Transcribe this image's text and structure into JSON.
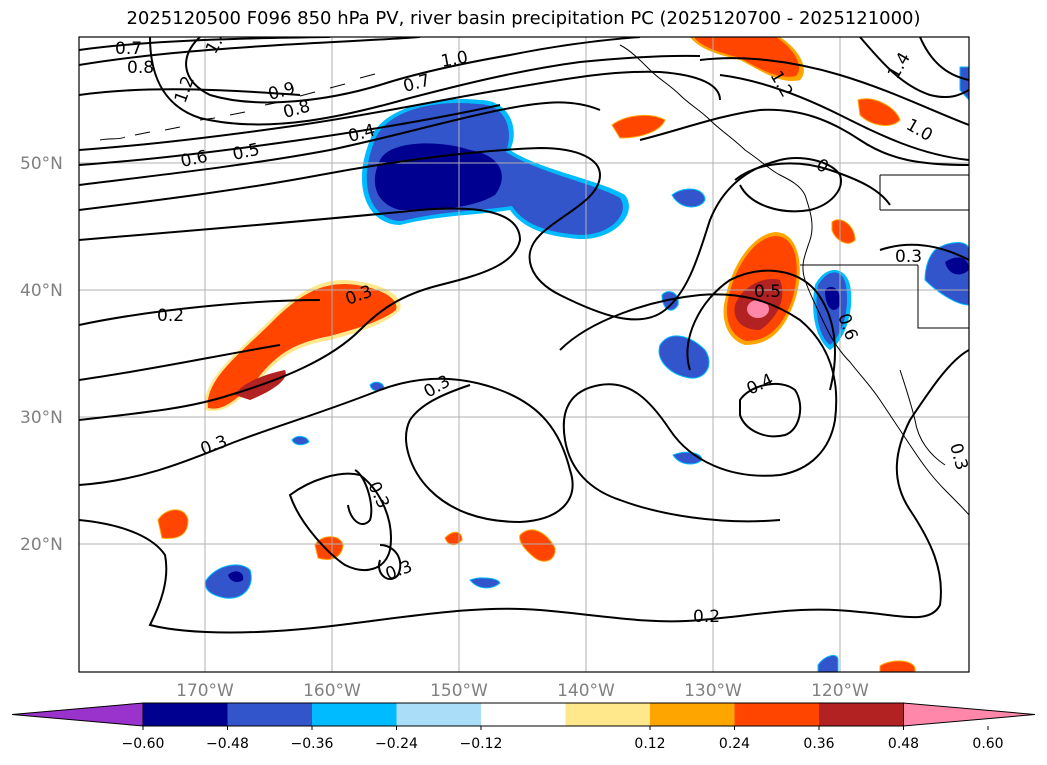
{
  "title": "2025120500 F096 850 hPa PV, river basin precipitation PC (2025120700 - 2025121000)",
  "map": {
    "lat_labels": [
      "50°N",
      "40°N",
      "30°N",
      "20°N"
    ],
    "lon_labels": [
      "170°W",
      "160°W",
      "150°W",
      "140°W",
      "130°W",
      "120°W"
    ],
    "contour_labels": [
      "0.7",
      "0.8",
      "1.2",
      "1.4",
      "0.9",
      "0.8",
      "0.7",
      "1.0",
      "0.6",
      "0.5",
      "0.4",
      "1.2",
      "0",
      "1.4",
      "1.0",
      "0.3",
      "0.2",
      "0.3",
      "0.5",
      "0.6",
      "0.3",
      "0.4",
      "0.3",
      "0.3",
      "0.3",
      "0.2",
      "0.3"
    ]
  },
  "colorbar": {
    "ticks": [
      "−0.60",
      "−0.48",
      "−0.36",
      "−0.24",
      "−0.12",
      "0.12",
      "0.24",
      "0.36",
      "0.48",
      "0.60"
    ],
    "colors": [
      "#9933cc",
      "#000090",
      "#3355cc",
      "#00bbff",
      "#aaddf7",
      "#ffffff",
      "#ffe88c",
      "#ffa500",
      "#ff4500",
      "#b22222",
      "#ff88aa"
    ]
  }
}
